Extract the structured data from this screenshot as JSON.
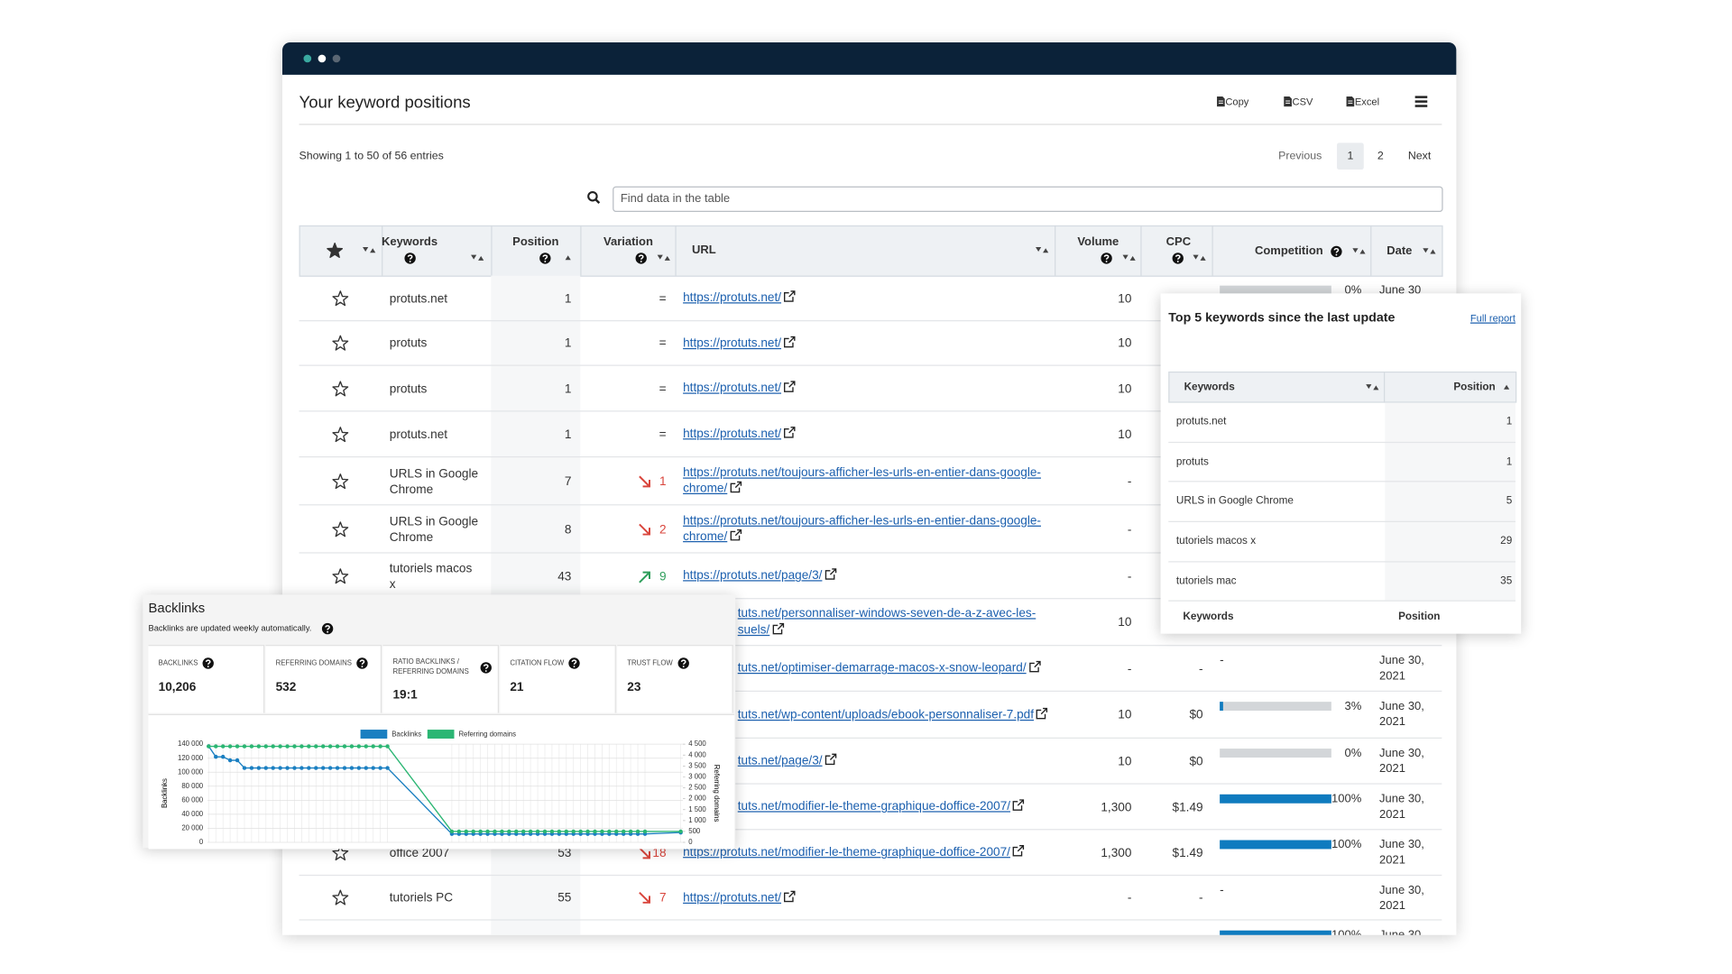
{
  "window": {
    "title": "Your keyword positions",
    "buttons": [
      "Copy",
      "CSV",
      "Excel"
    ],
    "info": "Showing 1 to 50 of 56 entries",
    "pagination": [
      "Previous",
      "1",
      "2",
      "Next"
    ],
    "search_placeholder": "Find data in the table"
  },
  "table": {
    "columns": [
      "Keywords",
      "Position",
      "Variation",
      "URL",
      "Volume",
      "CPC",
      "Competition",
      "Date"
    ],
    "rows": [
      {
        "keyword": "protuts.net",
        "position": 1,
        "variation": "=",
        "url": "https://protuts.net/",
        "volume": "10",
        "cpc": null,
        "competition": {
          "value": 0,
          "label": "0%"
        },
        "date": "June 30"
      },
      {
        "keyword": "protuts",
        "position": 1,
        "variation": "=",
        "url": "https://protuts.net/",
        "volume": "10",
        "cpc": null,
        "competition": null,
        "date": null
      },
      {
        "keyword": "protuts",
        "position": 1,
        "variation": "=",
        "url": "https://protuts.net/",
        "volume": "10",
        "cpc": null,
        "competition": null,
        "date": null
      },
      {
        "keyword": "protuts.net",
        "position": 1,
        "variation": "=",
        "url": "https://protuts.net/",
        "volume": "10",
        "cpc": null,
        "competition": null,
        "date": null
      },
      {
        "keyword": "URLS in Google Chrome",
        "position": 7,
        "variation": {
          "trend": "down",
          "value": 1
        },
        "url": "https://protuts.net/toujours-afficher-les-urls-en-entier-dans-google-chrome/",
        "volume": "-",
        "cpc": null,
        "competition": null,
        "date": null
      },
      {
        "keyword": "URLS in Google Chrome",
        "position": 8,
        "variation": {
          "trend": "down",
          "value": 2
        },
        "url": "https://protuts.net/toujours-afficher-les-urls-en-entier-dans-google-chrome/",
        "volume": "-",
        "cpc": null,
        "competition": null,
        "date": null
      },
      {
        "keyword": "tutoriels macos x",
        "position": 43,
        "variation": {
          "trend": "up",
          "value": 9
        },
        "url": "https://protuts.net/page/3/",
        "volume": "-",
        "cpc": null,
        "competition": null,
        "date": null
      },
      {
        "keyword": null,
        "position": null,
        "variation": null,
        "url": "tuts.net/personnaliser-windows-seven-de-a-z-avec-les-suels/",
        "volume": "10",
        "cpc": null,
        "competition": null,
        "date": null
      },
      {
        "keyword": null,
        "position": null,
        "variation": null,
        "url": "tuts.net/optimiser-demarrage-macos-x-snow-leopard/",
        "volume": "-",
        "cpc": "-",
        "competition": "-",
        "date": "June 30, 2021"
      },
      {
        "keyword": null,
        "position": null,
        "variation": null,
        "url": "tuts.net/wp-content/uploads/ebook-personnaliser-7.pdf",
        "volume": "10",
        "cpc": "$0",
        "competition": {
          "value": 3,
          "label": "3%"
        },
        "date": "June 30, 2021"
      },
      {
        "keyword": null,
        "position": null,
        "variation": null,
        "url": "tuts.net/page/3/",
        "volume": "10",
        "cpc": "$0",
        "competition": {
          "value": 0,
          "label": "0%"
        },
        "date": "June 30, 2021"
      },
      {
        "keyword": null,
        "position": null,
        "variation": null,
        "url": "tuts.net/modifier-le-theme-graphique-doffice-2007/",
        "volume": "1,300",
        "cpc": "$1.49",
        "competition": {
          "value": 100,
          "label": "100%"
        },
        "date": "June 30, 2021"
      },
      {
        "keyword": "office 2007",
        "position": 53,
        "variation": {
          "trend": "down",
          "value": 18
        },
        "url": "https://protuts.net/modifier-le-theme-graphique-doffice-2007/",
        "volume": "1,300",
        "cpc": "$1.49",
        "competition": {
          "value": 100,
          "label": "100%"
        },
        "date": "June 30, 2021"
      },
      {
        "keyword": "tutoriels PC",
        "position": 55,
        "variation": {
          "trend": "down",
          "value": 7
        },
        "url": "https://protuts.net/",
        "volume": "-",
        "cpc": "-",
        "competition": "-",
        "date": "June 30, 2021"
      },
      {
        "keyword": null,
        "position": null,
        "variation": null,
        "url": null,
        "volume": null,
        "cpc": null,
        "competition": {
          "value": 100,
          "label": "100%"
        },
        "date": "June 30"
      }
    ]
  },
  "top5": {
    "title": "Top 5 keywords since the last update",
    "link": "Full report",
    "headers": [
      "Keywords",
      "Position"
    ],
    "rows": [
      {
        "keyword": "protuts.net",
        "position": 1
      },
      {
        "keyword": "protuts",
        "position": 1
      },
      {
        "keyword": "URLS in Google Chrome",
        "position": 5
      },
      {
        "keyword": "tutoriels macos x",
        "position": 29
      },
      {
        "keyword": "tutoriels mac",
        "position": 35
      }
    ],
    "footer": [
      "Keywords",
      "Position"
    ]
  },
  "backlinks": {
    "title": "Backlinks",
    "note": "Backlinks are updated weekly automatically.",
    "stats": [
      {
        "label": "BACKLINKS",
        "value": "10,206"
      },
      {
        "label": "REFERRING DOMAINS",
        "value": "532"
      },
      {
        "label": "RATIO BACKLINKS / REFERRING DOMAINS",
        "value": "19:1"
      },
      {
        "label": "CITATION FLOW",
        "value": "21"
      },
      {
        "label": "TRUST FLOW",
        "value": "23"
      }
    ]
  },
  "chart_data": {
    "type": "line",
    "legend": "top",
    "grid": true,
    "ylabel": "Backlinks",
    "y2label": "Referring domains",
    "x": [
      0,
      1,
      2,
      3,
      4,
      5,
      6,
      7,
      8,
      9,
      10,
      11,
      12,
      13,
      14,
      15,
      16,
      17,
      18,
      19,
      20,
      21,
      22,
      23,
      24,
      25,
      34,
      35,
      36,
      37,
      38,
      39,
      40,
      41,
      42,
      43,
      44,
      45,
      46,
      47,
      48,
      49,
      50,
      51,
      52,
      53,
      54,
      55,
      56,
      57,
      58,
      59,
      60,
      61,
      66
    ],
    "series": [
      {
        "name": "Backlinks",
        "color": "#1a7fc1",
        "values": [
          137000,
          122000,
          122000,
          117000,
          117000,
          106000,
          106000,
          106000,
          106000,
          106000,
          106000,
          106000,
          106000,
          106000,
          106000,
          106000,
          106000,
          106000,
          106000,
          106000,
          106000,
          106000,
          106000,
          106000,
          106000,
          106000,
          12000,
          12000,
          12000,
          12000,
          12000,
          12000,
          12000,
          12000,
          12000,
          12000,
          12000,
          12000,
          12000,
          12000,
          12000,
          12000,
          12000,
          12000,
          12000,
          12000,
          12000,
          12000,
          12000,
          12000,
          12000,
          12000,
          12000,
          12000,
          14000
        ]
      },
      {
        "name": "Referring domains",
        "color": "#2bb673",
        "axis": "y2",
        "values": [
          4400,
          4400,
          4400,
          4400,
          4400,
          4400,
          4400,
          4400,
          4400,
          4400,
          4400,
          4400,
          4400,
          4400,
          4400,
          4400,
          4400,
          4400,
          4400,
          4400,
          4400,
          4400,
          4400,
          4400,
          4400,
          4400,
          500,
          500,
          500,
          500,
          500,
          500,
          500,
          500,
          500,
          500,
          500,
          500,
          500,
          500,
          500,
          500,
          500,
          500,
          500,
          500,
          500,
          500,
          500,
          500,
          500,
          500,
          500,
          500,
          500
        ]
      }
    ],
    "ylim": [
      0,
      140000
    ],
    "yticks": [
      0,
      {
        "value": 20000,
        "label": "20 000"
      },
      {
        "value": 40000,
        "label": "40 000"
      },
      {
        "value": 60000,
        "label": "60 000"
      },
      {
        "value": 80000,
        "label": "80 000"
      },
      {
        "value": 100000,
        "label": "100 000"
      },
      {
        "value": 120000,
        "label": "120 000"
      },
      {
        "value": 140000,
        "label": "140 000"
      }
    ],
    "y2lim": [
      0,
      4500
    ],
    "y2ticks": [
      0,
      500,
      {
        "value": 1000,
        "label": "1 000"
      },
      {
        "value": 1500,
        "label": "1 500"
      },
      {
        "value": 2000,
        "label": "2 000"
      },
      {
        "value": 2500,
        "label": "2 500"
      },
      {
        "value": 3000,
        "label": "3 000"
      },
      {
        "value": 3500,
        "label": "3 500"
      },
      {
        "value": 4000,
        "label": "4 000"
      },
      {
        "value": 4500,
        "label": "4 500"
      }
    ]
  }
}
